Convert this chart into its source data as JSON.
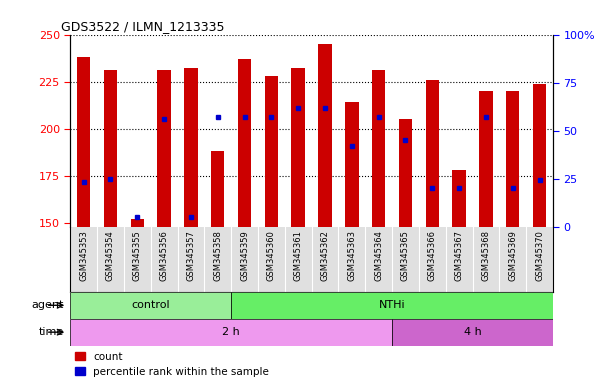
{
  "title": "GDS3522 / ILMN_1213335",
  "samples": [
    "GSM345353",
    "GSM345354",
    "GSM345355",
    "GSM345356",
    "GSM345357",
    "GSM345358",
    "GSM345359",
    "GSM345360",
    "GSM345361",
    "GSM345362",
    "GSM345363",
    "GSM345364",
    "GSM345365",
    "GSM345366",
    "GSM345367",
    "GSM345368",
    "GSM345369",
    "GSM345370"
  ],
  "counts": [
    238,
    231,
    152,
    231,
    232,
    188,
    237,
    228,
    232,
    245,
    214,
    231,
    205,
    226,
    178,
    220,
    220,
    224
  ],
  "percentile_ranks": [
    23,
    25,
    5,
    56,
    5,
    57,
    57,
    57,
    62,
    62,
    42,
    57,
    45,
    20,
    20,
    57,
    20,
    24
  ],
  "ylim_left": [
    148,
    250
  ],
  "ylim_right": [
    0,
    100
  ],
  "yticks_left": [
    150,
    175,
    200,
    225,
    250
  ],
  "yticks_right": [
    0,
    25,
    50,
    75,
    100
  ],
  "ytick_right_labels": [
    "0",
    "25",
    "50",
    "75",
    "100%"
  ],
  "bar_color": "#cc0000",
  "dot_color": "#0000cc",
  "agent_groups": [
    {
      "label": "control",
      "start": 0,
      "end": 5,
      "color": "#99ee99"
    },
    {
      "label": "NTHi",
      "start": 6,
      "end": 17,
      "color": "#66ee66"
    }
  ],
  "time_groups": [
    {
      "label": "2 h",
      "start": 0,
      "end": 11,
      "color": "#ee99ee"
    },
    {
      "label": "4 h",
      "start": 12,
      "end": 17,
      "color": "#cc66cc"
    }
  ],
  "legend_count_label": "count",
  "legend_perc_label": "percentile rank within the sample",
  "bar_width": 0.5,
  "background_color": "#ffffff",
  "plot_bg": "#ffffff",
  "xticklabel_area_color": "#e0e0e0",
  "grid_yticks": [
    175,
    200,
    225
  ],
  "agent_label": "agent",
  "time_label": "time"
}
